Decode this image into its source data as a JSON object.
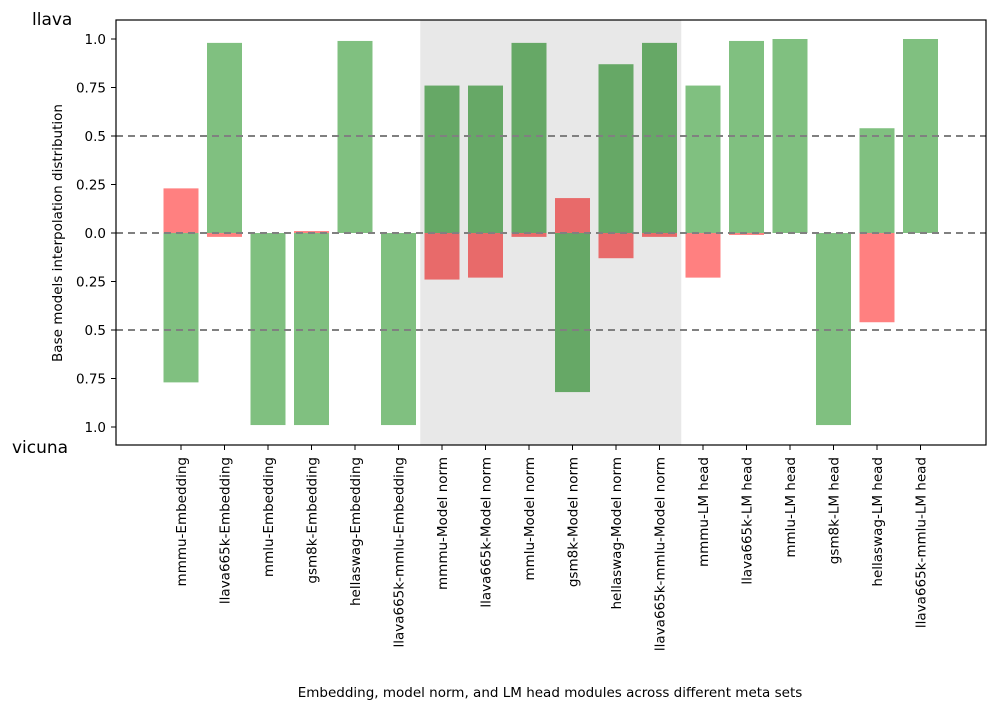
{
  "chart_data": {
    "type": "bar",
    "title": "",
    "top_label": "llava",
    "bottom_label": "vicuna",
    "xlabel": "Embedding, model norm, and LM head modules across different meta sets",
    "ylabel": "Base models interpolation distribution",
    "ylim": [
      -1.05,
      1.1
    ],
    "y_ticks": [
      {
        "value": 1.0,
        "label": "1.0"
      },
      {
        "value": 0.75,
        "label": "0.75"
      },
      {
        "value": 0.5,
        "label": "0.5"
      },
      {
        "value": 0.25,
        "label": "0.25"
      },
      {
        "value": 0.0,
        "label": "0.0"
      },
      {
        "value": -0.25,
        "label": "0.25"
      },
      {
        "value": -0.5,
        "label": "0.5"
      },
      {
        "value": -0.75,
        "label": "0.75"
      },
      {
        "value": -1.0,
        "label": "1.0"
      }
    ],
    "reference_lines": [
      0.5,
      0.0,
      -0.5
    ],
    "highlight_range": [
      "mmmu-Model norm",
      "llava665k-mmlu-Model norm"
    ],
    "colors": {
      "llava_bar": "#ff8080",
      "vicuna_bar": "#80c080",
      "llava_bar_highlight": "#e86a6a",
      "vicuna_bar_highlight": "#66a866",
      "highlight_bg": "#e8e8e8",
      "reference_line": "#808080"
    },
    "categories": [
      "mmmu-Embedding",
      "llava665k-Embedding",
      "mmlu-Embedding",
      "gsm8k-Embedding",
      "hellaswag-Embedding",
      "llava665k-mmlu-Embedding",
      "mmmu-Model norm",
      "llava665k-Model norm",
      "mmlu-Model norm",
      "gsm8k-Model norm",
      "hellaswag-Model norm",
      "llava665k-mmlu-Model norm",
      "mmmu-LM head",
      "llava665k-LM head",
      "mmlu-LM head",
      "gsm8k-LM head",
      "hellaswag-LM head",
      "llava665k-mmlu-LM head"
    ],
    "series": [
      {
        "color": "#ff8080",
        "values": [
          0.23,
          -0.02,
          0.0,
          0.01,
          0.0,
          0.0,
          -0.24,
          -0.23,
          -0.02,
          0.18,
          -0.13,
          -0.02,
          -0.23,
          -0.01,
          0.0,
          0.0,
          -0.46,
          0.0
        ]
      },
      {
        "color": "#80c080",
        "values": [
          -0.77,
          0.98,
          -0.99,
          -0.99,
          0.99,
          -0.99,
          0.76,
          0.76,
          0.98,
          -0.82,
          0.87,
          0.98,
          0.76,
          0.99,
          1.0,
          -0.99,
          0.54,
          1.0
        ]
      }
    ]
  }
}
